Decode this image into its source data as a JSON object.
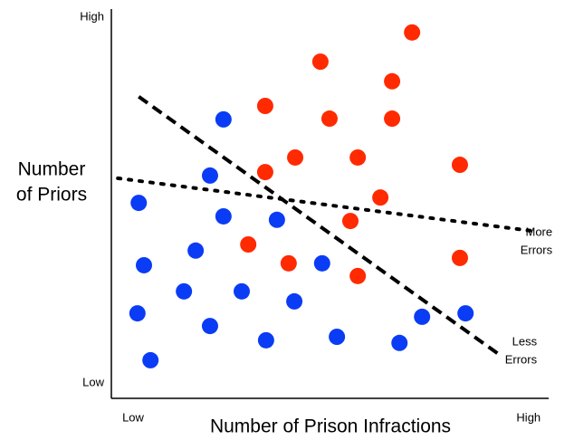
{
  "chart_data": {
    "type": "scatter",
    "x_label": "Number of Prison Infractions",
    "y_label": [
      "Number",
      "of Priors"
    ],
    "xlim": [
      0,
      100
    ],
    "ylim": [
      0,
      100
    ],
    "xticks": [
      {
        "value": 5,
        "label": "Low"
      },
      {
        "value": 96,
        "label": "High"
      }
    ],
    "yticks": [
      {
        "value": 4,
        "label": "Low"
      },
      {
        "value": 99,
        "label": "High"
      }
    ],
    "series": [
      {
        "color": "#ff2a00",
        "x": [
          69.2,
          48.1,
          64.6,
          35.4,
          50.2,
          64.6,
          42.3,
          56.7,
          80.2,
          35.4,
          61.9,
          55.0,
          31.5,
          40.8,
          80.2,
          56.7
        ],
        "y": [
          95.1,
          87.5,
          82.4,
          76.0,
          72.7,
          72.7,
          62.6,
          62.6,
          60.7,
          58.8,
          52.2,
          46.1,
          40.0,
          35.1,
          36.5,
          31.8
        ]
      },
      {
        "color": "#0a3cf5",
        "x": [
          25.8,
          22.7,
          6.3,
          25.8,
          38.1,
          19.4,
          7.5,
          48.5,
          16.7,
          30.0,
          42.1,
          6.0,
          22.7,
          71.5,
          81.5,
          9.0,
          35.6,
          51.9,
          66.3
        ],
        "y": [
          72.5,
          57.9,
          50.8,
          47.3,
          46.4,
          38.4,
          34.6,
          35.1,
          27.8,
          27.8,
          25.2,
          22.1,
          18.8,
          21.2,
          22.1,
          9.9,
          15.1,
          16.0,
          14.4
        ]
      }
    ],
    "lines": [
      {
        "style": "dashed",
        "color": "#000000",
        "x": [
          6.3,
          89.6
        ],
        "y": [
          78.4,
          11.1
        ],
        "label": [
          "Less",
          "Errors"
        ]
      },
      {
        "style": "dotted",
        "color": "#000000",
        "x": [
          1.5,
          96.9
        ],
        "y": [
          57.2,
          43.5
        ],
        "label": [
          "More",
          "Errors"
        ]
      }
    ]
  }
}
